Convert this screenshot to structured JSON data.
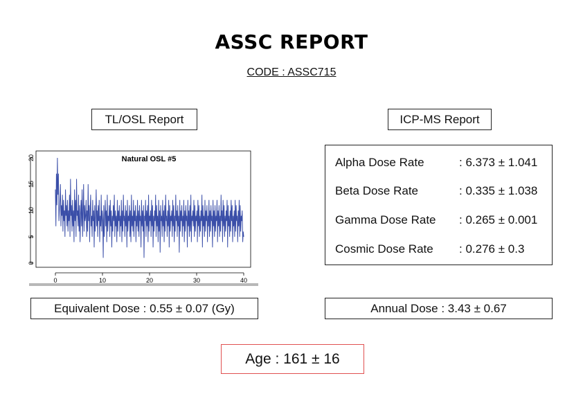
{
  "report": {
    "title": "ASSC REPORT",
    "code": "CODE : ASSC715"
  },
  "tl_osl": {
    "heading": "TL/OSL Report",
    "equivalent_dose": "Equivalent Dose : 0.55 ± 0.07 (Gy)"
  },
  "icp_ms": {
    "heading": "ICP-MS Report",
    "rates": [
      {
        "label": "Alpha Dose Rate",
        "value": ": 6.373 ± 1.041"
      },
      {
        "label": "Beta Dose Rate",
        "value": ": 0.335 ± 1.038"
      },
      {
        "label": "Gamma Dose Rate",
        "value": ": 0.265 ± 0.001"
      },
      {
        "label": "Cosmic Dose Rate",
        "value": ": 0.276 ± 0.3"
      }
    ],
    "annual_dose": "Annual Dose : 3.43 ± 0.67"
  },
  "age": "Age : 161 ± 16",
  "colors": {
    "line": "#3a4ea8",
    "age_border": "#e05050"
  },
  "chart_data": {
    "type": "line",
    "title": "Natural OSL #5",
    "xlabel": "",
    "ylabel": "",
    "xlim": [
      0,
      40
    ],
    "ylim": [
      0,
      20
    ],
    "xticks": [
      "0",
      "10",
      "20",
      "30",
      "40"
    ],
    "yticks": [
      "0",
      "5",
      "10",
      "15",
      "20"
    ],
    "grid": false,
    "series": [
      {
        "values": [
          14,
          7,
          17,
          11,
          20,
          13,
          17,
          8,
          10,
          12,
          15,
          7,
          11,
          9,
          13,
          6,
          12,
          8,
          10,
          5,
          14,
          9,
          11,
          7,
          12,
          6,
          10,
          8,
          13,
          5,
          16,
          9,
          11,
          6,
          12,
          7,
          10,
          4,
          14,
          8,
          12,
          5,
          16,
          9,
          10,
          7,
          13,
          6,
          11,
          4,
          9,
          12,
          7,
          14,
          5,
          10,
          15,
          6,
          11,
          8,
          9,
          12,
          5,
          10,
          6,
          15,
          8,
          11,
          4,
          10,
          13,
          7,
          9,
          5,
          12,
          8,
          10,
          3,
          11,
          6,
          9,
          14,
          7,
          10,
          5,
          11,
          8,
          12,
          4,
          9,
          7,
          13,
          6,
          10,
          8,
          1,
          11,
          5,
          9,
          12,
          7,
          10,
          4,
          13,
          6,
          9,
          8,
          11,
          5,
          12,
          7,
          10,
          3,
          9,
          6,
          11,
          8,
          13,
          5,
          10,
          7,
          9,
          4,
          12,
          6,
          10,
          8,
          11,
          5,
          9,
          7,
          12,
          4,
          10,
          6,
          13,
          8,
          9,
          5,
          11,
          7,
          10,
          3,
          12,
          6,
          9,
          8,
          11,
          5,
          10,
          4,
          13,
          7,
          9,
          6,
          12,
          5,
          10,
          8,
          11,
          4,
          9,
          7,
          12,
          6,
          10,
          5,
          11,
          8,
          9,
          3,
          12,
          7,
          10,
          6,
          11,
          1,
          9,
          8,
          12,
          5,
          10,
          7,
          11,
          4,
          13,
          6,
          9,
          8,
          10,
          5,
          12,
          7,
          11,
          3,
          9,
          6,
          10,
          8,
          13,
          5,
          11,
          7,
          9,
          4,
          12,
          6,
          10,
          2,
          11,
          8,
          9,
          5,
          12,
          7,
          10,
          4,
          11,
          6,
          13,
          8,
          9,
          5,
          10,
          7,
          12,
          3,
          11,
          6,
          9,
          8,
          10,
          5,
          12,
          7,
          11,
          4,
          9,
          6,
          13,
          8,
          10,
          5,
          11,
          7,
          9,
          2,
          12,
          6,
          10,
          8,
          11,
          5,
          9,
          7,
          12,
          4,
          10,
          6,
          11,
          8,
          9,
          3,
          12,
          7,
          10,
          5,
          11,
          6,
          13,
          4,
          9,
          8,
          10,
          7,
          12,
          5,
          11,
          6,
          9,
          8,
          10,
          4,
          12,
          7,
          11,
          5,
          9,
          6,
          10,
          8,
          13,
          3,
          11,
          7,
          9,
          5,
          12,
          6,
          10,
          8,
          11,
          4,
          9,
          7,
          12,
          5,
          10,
          6,
          11,
          8,
          9,
          3,
          12,
          7,
          10,
          5,
          11,
          6,
          9,
          8,
          12,
          4,
          10,
          7,
          11,
          5,
          9,
          6,
          13,
          8,
          10,
          4,
          12,
          7,
          11,
          5,
          9,
          6,
          10,
          8,
          12,
          3,
          11,
          7,
          9,
          5,
          10,
          6,
          12,
          8,
          11,
          4,
          9,
          7,
          10,
          5,
          12,
          6,
          11,
          8,
          9,
          4,
          10,
          7,
          12,
          5,
          11,
          6,
          9,
          8,
          10,
          4,
          6,
          5
        ]
      }
    ]
  }
}
